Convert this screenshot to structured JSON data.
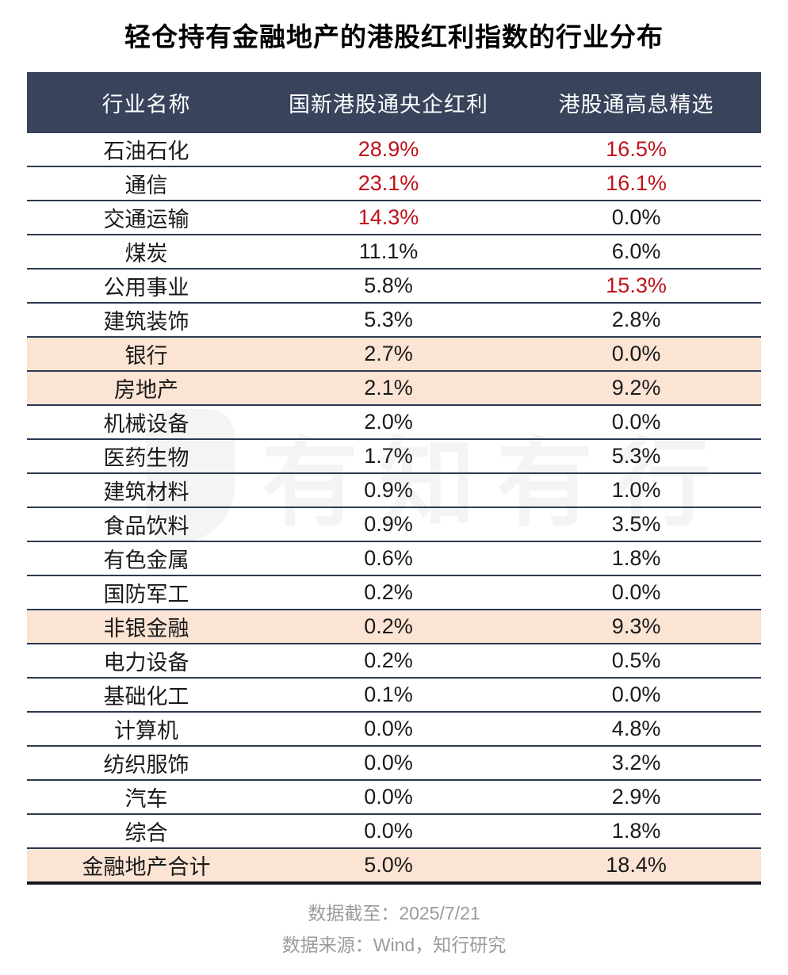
{
  "title": "轻仓持有金融地产的港股红利指数的行业分布",
  "watermark": {
    "text": "有知有行"
  },
  "table": {
    "columns": [
      "行业名称",
      "国新港股通央企红利",
      "港股通高息精选"
    ],
    "rows": [
      {
        "industry": "石油石化",
        "v1": "28.9%",
        "v2": "16.5%",
        "v1_red": true,
        "v2_red": true,
        "highlight": false
      },
      {
        "industry": "通信",
        "v1": "23.1%",
        "v2": "16.1%",
        "v1_red": true,
        "v2_red": true,
        "highlight": false
      },
      {
        "industry": "交通运输",
        "v1": "14.3%",
        "v2": "0.0%",
        "v1_red": true,
        "v2_red": false,
        "highlight": false
      },
      {
        "industry": "煤炭",
        "v1": "11.1%",
        "v2": "6.0%",
        "v1_red": false,
        "v2_red": false,
        "highlight": false
      },
      {
        "industry": "公用事业",
        "v1": "5.8%",
        "v2": "15.3%",
        "v1_red": false,
        "v2_red": true,
        "highlight": false
      },
      {
        "industry": "建筑装饰",
        "v1": "5.3%",
        "v2": "2.8%",
        "v1_red": false,
        "v2_red": false,
        "highlight": false
      },
      {
        "industry": "银行",
        "v1": "2.7%",
        "v2": "0.0%",
        "v1_red": false,
        "v2_red": false,
        "highlight": true
      },
      {
        "industry": "房地产",
        "v1": "2.1%",
        "v2": "9.2%",
        "v1_red": false,
        "v2_red": false,
        "highlight": true
      },
      {
        "industry": "机械设备",
        "v1": "2.0%",
        "v2": "0.0%",
        "v1_red": false,
        "v2_red": false,
        "highlight": false
      },
      {
        "industry": "医药生物",
        "v1": "1.7%",
        "v2": "5.3%",
        "v1_red": false,
        "v2_red": false,
        "highlight": false
      },
      {
        "industry": "建筑材料",
        "v1": "0.9%",
        "v2": "1.0%",
        "v1_red": false,
        "v2_red": false,
        "highlight": false
      },
      {
        "industry": "食品饮料",
        "v1": "0.9%",
        "v2": "3.5%",
        "v1_red": false,
        "v2_red": false,
        "highlight": false
      },
      {
        "industry": "有色金属",
        "v1": "0.6%",
        "v2": "1.8%",
        "v1_red": false,
        "v2_red": false,
        "highlight": false
      },
      {
        "industry": "国防军工",
        "v1": "0.2%",
        "v2": "0.0%",
        "v1_red": false,
        "v2_red": false,
        "highlight": false
      },
      {
        "industry": "非银金融",
        "v1": "0.2%",
        "v2": "9.3%",
        "v1_red": false,
        "v2_red": false,
        "highlight": true
      },
      {
        "industry": "电力设备",
        "v1": "0.2%",
        "v2": "0.5%",
        "v1_red": false,
        "v2_red": false,
        "highlight": false
      },
      {
        "industry": "基础化工",
        "v1": "0.1%",
        "v2": "0.0%",
        "v1_red": false,
        "v2_red": false,
        "highlight": false
      },
      {
        "industry": "计算机",
        "v1": "0.0%",
        "v2": "4.8%",
        "v1_red": false,
        "v2_red": false,
        "highlight": false
      },
      {
        "industry": "纺织服饰",
        "v1": "0.0%",
        "v2": "3.2%",
        "v1_red": false,
        "v2_red": false,
        "highlight": false
      },
      {
        "industry": "汽车",
        "v1": "0.0%",
        "v2": "2.9%",
        "v1_red": false,
        "v2_red": false,
        "highlight": false
      },
      {
        "industry": "综合",
        "v1": "0.0%",
        "v2": "1.8%",
        "v1_red": false,
        "v2_red": false,
        "highlight": false
      },
      {
        "industry": "金融地产合计",
        "v1": "5.0%",
        "v2": "18.4%",
        "v1_red": false,
        "v2_red": false,
        "highlight": true
      }
    ]
  },
  "footer": {
    "as_of": "数据截至：2025/7/21",
    "source": "数据来源：Wind，知行研究"
  },
  "colors": {
    "header_bg": "#39435c",
    "highlight_bg": "#fce4d4",
    "accent_red": "#c0121b",
    "divider": "#2d3951",
    "bottom_border": "#15181f",
    "footer_text": "#9b9b9b"
  },
  "chart_data": {
    "type": "table",
    "title": "轻仓持有金融地产的港股红利指数的行业分布",
    "columns": [
      "行业名称",
      "国新港股通央企红利",
      "港股通高息精选"
    ],
    "unit": "%",
    "rows": [
      [
        "石油石化",
        28.9,
        16.5
      ],
      [
        "通信",
        23.1,
        16.1
      ],
      [
        "交通运输",
        14.3,
        0.0
      ],
      [
        "煤炭",
        11.1,
        6.0
      ],
      [
        "公用事业",
        5.8,
        15.3
      ],
      [
        "建筑装饰",
        5.3,
        2.8
      ],
      [
        "银行",
        2.7,
        0.0
      ],
      [
        "房地产",
        2.1,
        9.2
      ],
      [
        "机械设备",
        2.0,
        0.0
      ],
      [
        "医药生物",
        1.7,
        5.3
      ],
      [
        "建筑材料",
        0.9,
        1.0
      ],
      [
        "食品饮料",
        0.9,
        3.5
      ],
      [
        "有色金属",
        0.6,
        1.8
      ],
      [
        "国防军工",
        0.2,
        0.0
      ],
      [
        "非银金融",
        0.2,
        9.3
      ],
      [
        "电力设备",
        0.2,
        0.5
      ],
      [
        "基础化工",
        0.1,
        0.0
      ],
      [
        "计算机",
        0.0,
        4.8
      ],
      [
        "纺织服饰",
        0.0,
        3.2
      ],
      [
        "汽车",
        0.0,
        2.9
      ],
      [
        "综合",
        0.0,
        1.8
      ],
      [
        "金融地产合计",
        5.0,
        18.4
      ]
    ],
    "highlighted_rows": [
      "银行",
      "房地产",
      "非银金融",
      "金融地产合计"
    ],
    "red_values": [
      [
        "石油石化",
        28.9
      ],
      [
        "石油石化",
        16.5
      ],
      [
        "通信",
        23.1
      ],
      [
        "通信",
        16.1
      ],
      [
        "交通运输",
        14.3
      ],
      [
        "公用事业",
        15.3
      ]
    ]
  }
}
